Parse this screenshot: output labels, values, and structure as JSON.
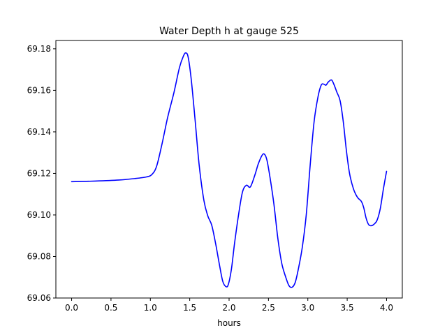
{
  "chart_data": {
    "type": "line",
    "title": "Water Depth h at gauge 525",
    "xlabel": "hours",
    "ylabel": "",
    "xlim": [
      -0.2,
      4.2
    ],
    "ylim": [
      69.06,
      69.184
    ],
    "xticks": [
      0.0,
      0.5,
      1.0,
      1.5,
      2.0,
      2.5,
      3.0,
      3.5,
      4.0
    ],
    "xtick_labels": [
      "0.0",
      "0.5",
      "1.0",
      "1.5",
      "2.0",
      "2.5",
      "3.0",
      "3.5",
      "4.0"
    ],
    "yticks": [
      69.06,
      69.08,
      69.1,
      69.12,
      69.14,
      69.16,
      69.18
    ],
    "ytick_labels": [
      "69.06",
      "69.08",
      "69.10",
      "69.12",
      "69.14",
      "69.16",
      "69.18"
    ],
    "grid": false,
    "series": [
      {
        "color": "#0000ff",
        "x": [
          0.0,
          0.3,
          0.6,
          0.8,
          0.95,
          1.02,
          1.08,
          1.15,
          1.22,
          1.3,
          1.37,
          1.42,
          1.45,
          1.48,
          1.52,
          1.57,
          1.62,
          1.68,
          1.73,
          1.78,
          1.83,
          1.88,
          1.92,
          1.96,
          1.99,
          2.03,
          2.07,
          2.12,
          2.17,
          2.22,
          2.27,
          2.33,
          2.37,
          2.42,
          2.45,
          2.48,
          2.52,
          2.57,
          2.62,
          2.67,
          2.72,
          2.76,
          2.8,
          2.84,
          2.88,
          2.93,
          2.98,
          3.03,
          3.08,
          3.13,
          3.17,
          3.2,
          3.23,
          3.26,
          3.3,
          3.33,
          3.37,
          3.41,
          3.45,
          3.49,
          3.53,
          3.58,
          3.63,
          3.68,
          3.71,
          3.74,
          3.77,
          3.8,
          3.84,
          3.88,
          3.92,
          3.96,
          4.0
        ],
        "y": [
          69.116,
          69.1163,
          69.1168,
          69.1175,
          69.1183,
          69.1195,
          69.1235,
          69.1345,
          69.147,
          69.159,
          69.171,
          69.1765,
          69.178,
          69.176,
          69.165,
          69.145,
          69.124,
          69.107,
          69.0995,
          69.095,
          69.086,
          69.0755,
          69.068,
          69.0655,
          69.0665,
          69.074,
          69.0865,
          69.1,
          69.111,
          69.1143,
          69.1135,
          69.1195,
          69.1245,
          69.1288,
          69.1292,
          69.1265,
          69.118,
          69.105,
          69.0885,
          69.0765,
          69.07,
          69.066,
          69.0652,
          69.0675,
          69.074,
          69.0845,
          69.1,
          69.124,
          69.145,
          69.157,
          69.1625,
          69.163,
          69.1625,
          69.164,
          69.165,
          69.163,
          69.159,
          69.155,
          69.145,
          69.131,
          69.12,
          69.1125,
          69.1085,
          69.1065,
          69.1035,
          69.0985,
          69.0955,
          69.0948,
          69.0955,
          69.0975,
          69.103,
          69.1125,
          69.121
        ]
      }
    ]
  }
}
